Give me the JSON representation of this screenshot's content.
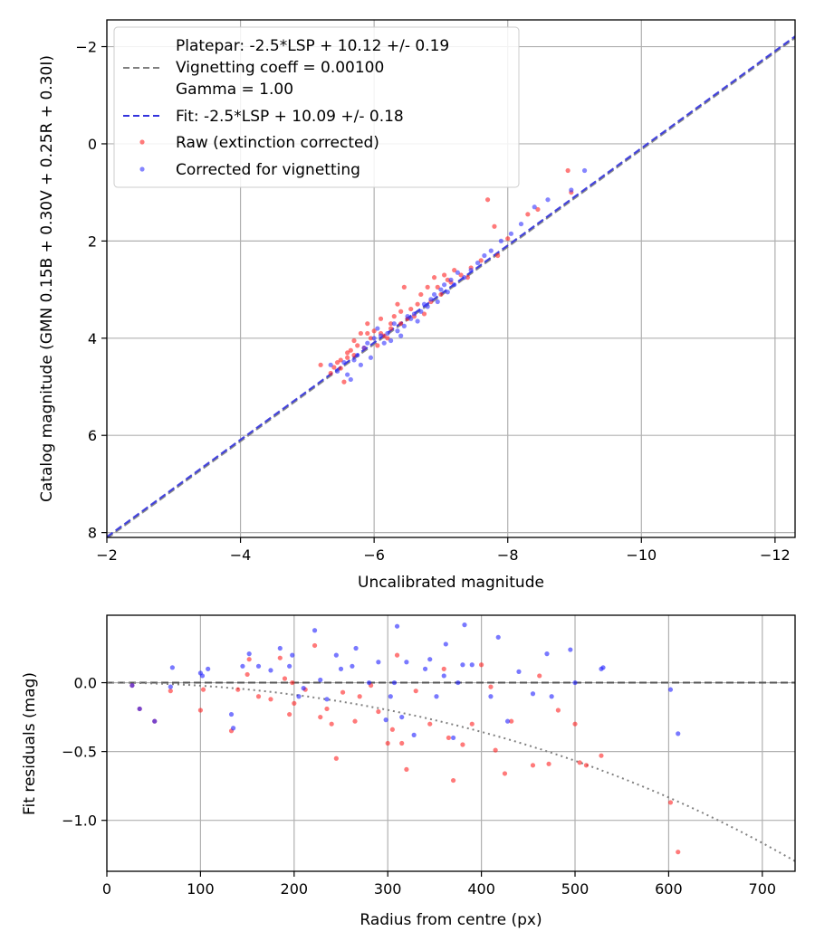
{
  "chart_data": [
    {
      "type": "scatter",
      "xlabel": "Uncalibrated magnitude",
      "ylabel": "Catalog magnitude (GMN 0.15B + 0.30V + 0.25R + 0.30I)",
      "xlim": [
        -2.0,
        -12.3
      ],
      "ylim": [
        8.1,
        -2.55
      ],
      "xticks": [
        -2,
        -4,
        -6,
        -8,
        -10,
        -12
      ],
      "xtick_labels": [
        "−2",
        "−4",
        "−6",
        "−8",
        "−10",
        "−12"
      ],
      "yticks": [
        -2,
        0,
        2,
        4,
        6,
        8
      ],
      "ytick_labels": [
        "−2",
        "0",
        "2",
        "4",
        "6",
        "8"
      ],
      "grid": true,
      "legend_position": "top-left",
      "legend": [
        {
          "label": "Platepar: -2.5*LSP + 10.12 +/- 0.19",
          "style": "none"
        },
        {
          "label": "Vignetting coeff = 0.00100",
          "style": "dashed-gray"
        },
        {
          "label": "Gamma = 1.00",
          "style": "none"
        },
        {
          "label": "Fit: -2.5*LSP + 10.09 +/- 0.18",
          "style": "dashed-blue"
        },
        {
          "label": "Raw (extinction corrected)",
          "style": "red-dot"
        },
        {
          "label": "Corrected for vignetting",
          "style": "blue-dot"
        }
      ],
      "lines": [
        {
          "name": "Platepar",
          "slope": 1.0,
          "intercept": 10.12,
          "color": "#808080",
          "style": "dashed"
        },
        {
          "name": "Fit",
          "slope": 1.0,
          "intercept": 10.09,
          "color": "#3333dd",
          "style": "dashed"
        }
      ],
      "series": [
        {
          "name": "Raw (extinction corrected)",
          "color": "#ff2222",
          "points": [
            [
              -5.2,
              4.55
            ],
            [
              -5.35,
              4.72
            ],
            [
              -5.4,
              4.6
            ],
            [
              -5.45,
              4.5
            ],
            [
              -5.5,
              4.62
            ],
            [
              -5.5,
              4.45
            ],
            [
              -5.55,
              4.9
            ],
            [
              -5.6,
              4.3
            ],
            [
              -5.6,
              4.4
            ],
            [
              -5.65,
              4.25
            ],
            [
              -5.7,
              4.05
            ],
            [
              -5.7,
              4.35
            ],
            [
              -5.75,
              4.15
            ],
            [
              -5.8,
              3.9
            ],
            [
              -5.85,
              4.2
            ],
            [
              -5.9,
              3.9
            ],
            [
              -5.9,
              3.7
            ],
            [
              -5.95,
              4.0
            ],
            [
              -6.0,
              3.85
            ],
            [
              -6.05,
              4.15
            ],
            [
              -6.1,
              3.6
            ],
            [
              -6.1,
              3.9
            ],
            [
              -6.15,
              3.95
            ],
            [
              -6.2,
              4.0
            ],
            [
              -6.25,
              3.8
            ],
            [
              -6.25,
              3.7
            ],
            [
              -6.3,
              3.55
            ],
            [
              -6.35,
              3.3
            ],
            [
              -6.4,
              3.45
            ],
            [
              -6.4,
              3.7
            ],
            [
              -6.45,
              2.95
            ],
            [
              -6.5,
              3.6
            ],
            [
              -6.55,
              3.4
            ],
            [
              -6.6,
              3.55
            ],
            [
              -6.65,
              3.3
            ],
            [
              -6.7,
              3.1
            ],
            [
              -6.75,
              3.5
            ],
            [
              -6.8,
              2.95
            ],
            [
              -6.85,
              3.25
            ],
            [
              -6.9,
              2.75
            ],
            [
              -6.95,
              2.95
            ],
            [
              -7.0,
              3.1
            ],
            [
              -7.05,
              2.7
            ],
            [
              -7.1,
              2.8
            ],
            [
              -7.15,
              2.85
            ],
            [
              -7.2,
              2.6
            ],
            [
              -7.3,
              2.7
            ],
            [
              -7.4,
              2.75
            ],
            [
              -7.45,
              2.55
            ],
            [
              -7.6,
              2.4
            ],
            [
              -7.7,
              1.15
            ],
            [
              -7.8,
              1.7
            ],
            [
              -7.85,
              2.3
            ],
            [
              -8.0,
              1.95
            ],
            [
              -8.3,
              1.45
            ],
            [
              -8.45,
              1.35
            ],
            [
              -8.9,
              0.55
            ],
            [
              -8.95,
              1.0
            ]
          ]
        },
        {
          "name": "Corrected for vignetting",
          "color": "#3333ff",
          "points": [
            [
              -5.35,
              4.55
            ],
            [
              -5.45,
              4.68
            ],
            [
              -5.55,
              4.5
            ],
            [
              -5.6,
              4.75
            ],
            [
              -5.65,
              4.85
            ],
            [
              -5.7,
              4.45
            ],
            [
              -5.75,
              4.35
            ],
            [
              -5.8,
              4.55
            ],
            [
              -5.85,
              4.2
            ],
            [
              -5.9,
              4.1
            ],
            [
              -5.95,
              4.4
            ],
            [
              -6.0,
              4.0
            ],
            [
              -6.05,
              3.8
            ],
            [
              -6.1,
              3.95
            ],
            [
              -6.15,
              4.1
            ],
            [
              -6.2,
              3.9
            ],
            [
              -6.25,
              4.05
            ],
            [
              -6.3,
              3.7
            ],
            [
              -6.35,
              3.85
            ],
            [
              -6.4,
              3.95
            ],
            [
              -6.45,
              3.75
            ],
            [
              -6.5,
              3.55
            ],
            [
              -6.55,
              3.6
            ],
            [
              -6.6,
              3.5
            ],
            [
              -6.65,
              3.65
            ],
            [
              -6.7,
              3.45
            ],
            [
              -6.75,
              3.3
            ],
            [
              -6.8,
              3.35
            ],
            [
              -6.85,
              3.2
            ],
            [
              -6.9,
              3.1
            ],
            [
              -6.95,
              3.25
            ],
            [
              -7.0,
              3.0
            ],
            [
              -7.05,
              2.9
            ],
            [
              -7.1,
              3.05
            ],
            [
              -7.15,
              2.8
            ],
            [
              -7.2,
              2.9
            ],
            [
              -7.25,
              2.65
            ],
            [
              -7.35,
              2.75
            ],
            [
              -7.45,
              2.6
            ],
            [
              -7.55,
              2.45
            ],
            [
              -7.65,
              2.3
            ],
            [
              -7.75,
              2.2
            ],
            [
              -7.9,
              2.0
            ],
            [
              -8.05,
              1.85
            ],
            [
              -8.2,
              1.65
            ],
            [
              -8.4,
              1.3
            ],
            [
              -8.6,
              1.15
            ],
            [
              -8.95,
              0.95
            ],
            [
              -9.15,
              0.55
            ]
          ]
        }
      ]
    },
    {
      "type": "scatter",
      "xlabel": "Radius from centre (px)",
      "ylabel": "Fit residuals (mag)",
      "xlim": [
        0,
        735
      ],
      "ylim": [
        -1.37,
        0.49
      ],
      "xticks": [
        0,
        100,
        200,
        300,
        400,
        500,
        600,
        700
      ],
      "xtick_labels": [
        "0",
        "100",
        "200",
        "300",
        "400",
        "500",
        "600",
        "700"
      ],
      "yticks": [
        0.0,
        -0.5,
        -1.0
      ],
      "ytick_labels": [
        "0.0",
        "−0.5",
        "−1.0"
      ],
      "grid": true,
      "zero_line": {
        "y": 0.0,
        "color": "#555555",
        "style": "dashed"
      },
      "vignetting_curve": {
        "coeff": 0.001,
        "gamma": 1.0,
        "color": "#808080",
        "style": "dotted"
      },
      "series": [
        {
          "name": "Raw",
          "color": "#ff2222",
          "points": [
            [
              27,
              -0.02
            ],
            [
              35,
              -0.19
            ],
            [
              51,
              -0.28
            ],
            [
              68,
              -0.06
            ],
            [
              100,
              -0.2
            ],
            [
              103,
              -0.05
            ],
            [
              133,
              -0.35
            ],
            [
              140,
              -0.05
            ],
            [
              150,
              0.06
            ],
            [
              152,
              0.17
            ],
            [
              162,
              -0.1
            ],
            [
              175,
              -0.12
            ],
            [
              185,
              0.18
            ],
            [
              190,
              0.03
            ],
            [
              195,
              -0.23
            ],
            [
              198,
              0.0
            ],
            [
              200,
              -0.15
            ],
            [
              212,
              -0.05
            ],
            [
              222,
              0.27
            ],
            [
              228,
              -0.25
            ],
            [
              235,
              -0.19
            ],
            [
              240,
              -0.3
            ],
            [
              245,
              -0.55
            ],
            [
              252,
              -0.07
            ],
            [
              265,
              -0.28
            ],
            [
              270,
              -0.1
            ],
            [
              282,
              -0.02
            ],
            [
              290,
              -0.21
            ],
            [
              300,
              -0.44
            ],
            [
              305,
              -0.34
            ],
            [
              310,
              0.2
            ],
            [
              315,
              -0.44
            ],
            [
              320,
              -0.63
            ],
            [
              330,
              -0.06
            ],
            [
              345,
              -0.3
            ],
            [
              360,
              0.1
            ],
            [
              365,
              -0.4
            ],
            [
              370,
              -0.71
            ],
            [
              380,
              -0.45
            ],
            [
              390,
              -0.3
            ],
            [
              400,
              0.13
            ],
            [
              410,
              -0.03
            ],
            [
              415,
              -0.49
            ],
            [
              425,
              -0.66
            ],
            [
              432,
              -0.28
            ],
            [
              455,
              -0.6
            ],
            [
              462,
              0.05
            ],
            [
              472,
              -0.59
            ],
            [
              482,
              -0.2
            ],
            [
              500,
              -0.3
            ],
            [
              505,
              -0.58
            ],
            [
              512,
              -0.6
            ],
            [
              528,
              -0.53
            ],
            [
              602,
              -0.87
            ],
            [
              610,
              -1.23
            ]
          ]
        },
        {
          "name": "Corrected",
          "color": "#2020ff",
          "points": [
            [
              27,
              -0.02
            ],
            [
              35,
              -0.19
            ],
            [
              51,
              -0.28
            ],
            [
              68,
              -0.03
            ],
            [
              70,
              0.11
            ],
            [
              100,
              0.07
            ],
            [
              102,
              0.05
            ],
            [
              108,
              0.1
            ],
            [
              133,
              -0.23
            ],
            [
              135,
              -0.33
            ],
            [
              145,
              0.12
            ],
            [
              152,
              0.21
            ],
            [
              162,
              0.12
            ],
            [
              175,
              0.09
            ],
            [
              185,
              0.25
            ],
            [
              195,
              0.12
            ],
            [
              198,
              0.2
            ],
            [
              205,
              -0.1
            ],
            [
              210,
              -0.04
            ],
            [
              222,
              0.38
            ],
            [
              228,
              0.02
            ],
            [
              235,
              -0.12
            ],
            [
              245,
              0.2
            ],
            [
              250,
              0.1
            ],
            [
              262,
              0.12
            ],
            [
              266,
              0.25
            ],
            [
              280,
              0.0
            ],
            [
              290,
              0.15
            ],
            [
              298,
              -0.27
            ],
            [
              303,
              -0.1
            ],
            [
              307,
              0.0
            ],
            [
              310,
              0.41
            ],
            [
              315,
              -0.25
            ],
            [
              320,
              0.15
            ],
            [
              328,
              -0.38
            ],
            [
              340,
              0.1
            ],
            [
              345,
              0.17
            ],
            [
              352,
              -0.1
            ],
            [
              360,
              0.05
            ],
            [
              362,
              0.28
            ],
            [
              370,
              -0.4
            ],
            [
              375,
              0.0
            ],
            [
              380,
              0.13
            ],
            [
              382,
              0.42
            ],
            [
              390,
              0.13
            ],
            [
              410,
              -0.1
            ],
            [
              418,
              0.33
            ],
            [
              428,
              -0.28
            ],
            [
              440,
              0.08
            ],
            [
              455,
              -0.08
            ],
            [
              470,
              0.21
            ],
            [
              475,
              -0.1
            ],
            [
              495,
              0.24
            ],
            [
              500,
              0.0
            ],
            [
              528,
              0.1
            ],
            [
              530,
              0.11
            ],
            [
              602,
              -0.05
            ],
            [
              610,
              -0.37
            ]
          ]
        }
      ]
    }
  ]
}
